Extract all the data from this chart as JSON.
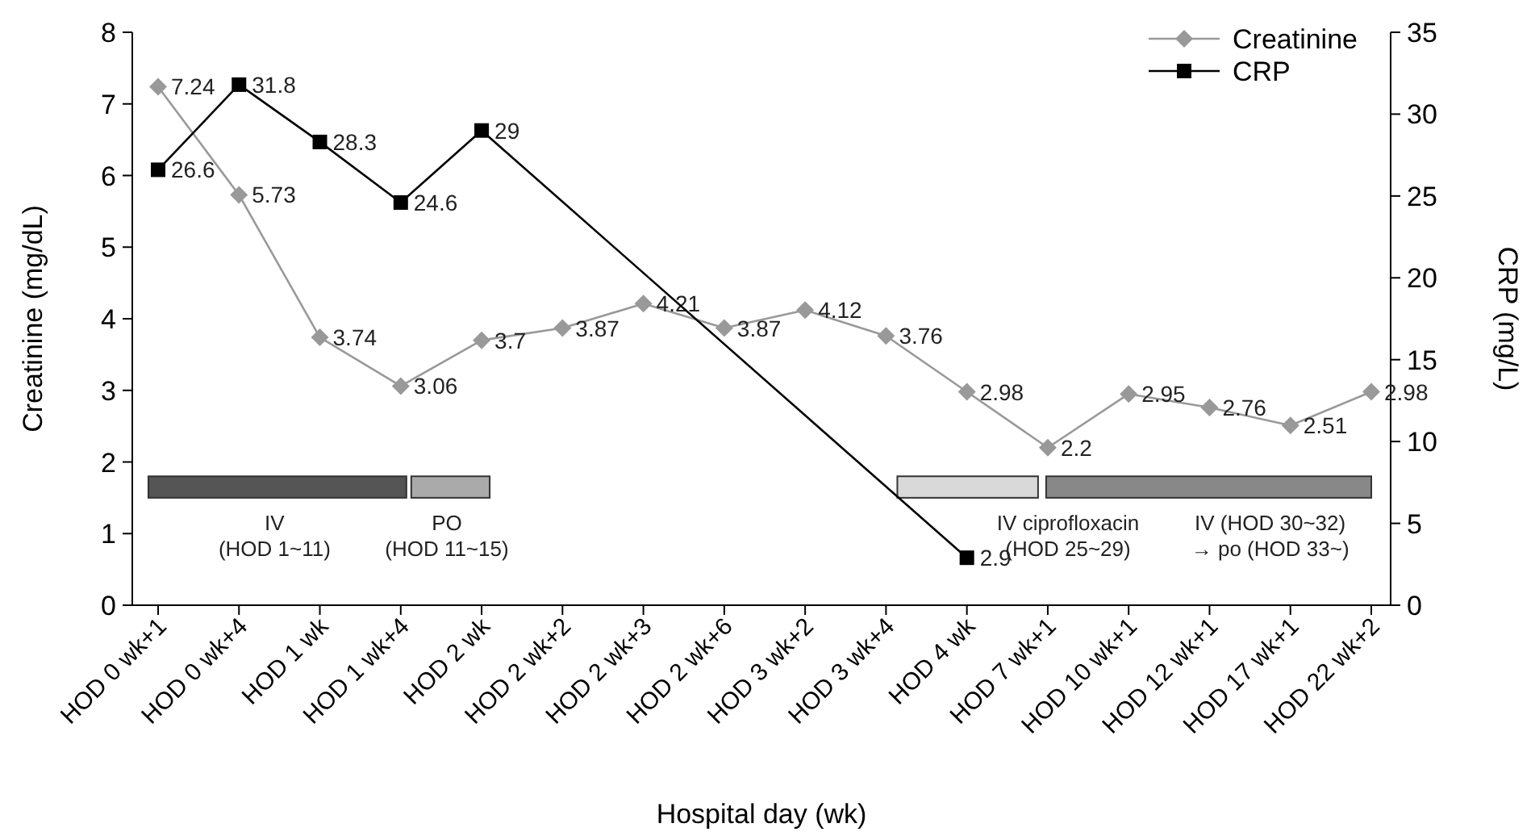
{
  "chart_data": {
    "type": "line",
    "xlabel": "Hospital day (wk)",
    "ylabel": "Creatinine (mg/dL)",
    "y2label": "CRP (mg/L)",
    "categories": [
      "HOD 0 wk+1",
      "HOD 0 wk+4",
      "HOD 1 wk",
      "HOD 1 wk+4",
      "HOD 2 wk",
      "HOD 2 wk+2",
      "HOD 2 wk+3",
      "HOD 2 wk+6",
      "HOD 3 wk+2",
      "HOD 3 wk+4",
      "HOD 4 wk",
      "HOD 7 wk+1",
      "HOD 10 wk+1",
      "HOD 12 wk+1",
      "HOD 17 wk+1",
      "HOD 22 wk+2"
    ],
    "series": [
      {
        "name": "Creatinine",
        "color": "#999999",
        "marker": "diamond",
        "values": [
          7.24,
          5.73,
          3.74,
          3.06,
          3.7,
          3.87,
          4.21,
          3.87,
          4.12,
          3.76,
          2.98,
          2.2,
          2.95,
          2.76,
          2.51,
          2.98
        ]
      },
      {
        "name": "CRP",
        "color": "#000000",
        "marker": "square",
        "axis": "y2",
        "x": [
          "HOD 0 wk+1",
          "HOD 0 wk+4",
          "HOD 1 wk",
          "HOD 1 wk+4",
          "HOD 2 wk",
          "HOD 4 wk"
        ],
        "values": [
          26.6,
          31.8,
          28.3,
          24.6,
          29,
          2.9
        ]
      }
    ],
    "ylim": [
      0,
      8
    ],
    "yticks": [
      0,
      1,
      2,
      3,
      4,
      5,
      6,
      7,
      8
    ],
    "y2lim": [
      0,
      35
    ],
    "y2ticks": [
      0,
      5,
      10,
      15,
      20,
      25,
      30,
      35
    ],
    "data_labels": true,
    "legend": "top right",
    "grid": false,
    "annotations": [
      "IV\n(HOD 1~11)",
      "PO\n(HOD 11~15)",
      "IV ciprofloxacin\n(HOD 25~29)",
      "IV (HOD 30~32)\n→ po (HOD 33~)"
    ]
  }
}
